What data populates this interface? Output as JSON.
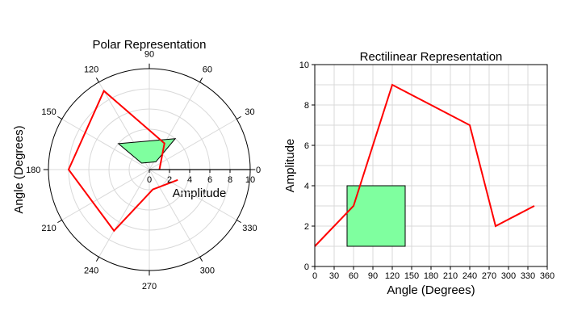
{
  "chart_data": [
    {
      "type": "line",
      "projection": "polar",
      "title": "Polar Representation",
      "ylabel": "Angle (Degrees)",
      "radial_label": "Amplitude",
      "radial_ticks": [
        0,
        2,
        4,
        6,
        8,
        10
      ],
      "radial_end_label": "0",
      "rlim": [
        0,
        10
      ],
      "angle_ticks": [
        "0",
        "30",
        "60",
        "90",
        "120",
        "150",
        "180",
        "210",
        "240",
        "270",
        "300",
        "330"
      ],
      "grid": true,
      "series": [
        {
          "color": "#ff0000",
          "x": [
            0,
            60,
            120,
            180,
            240,
            280,
            340
          ],
          "y": [
            1,
            3,
            9,
            8,
            7,
            2,
            3
          ]
        }
      ],
      "rectangle": {
        "theta": [
          50,
          140
        ],
        "r": [
          1,
          4
        ],
        "fill": "#7fff9f"
      }
    },
    {
      "type": "line",
      "title": "Rectilinear Representation",
      "xlabel": "Angle (Degrees)",
      "ylabel": "Amplitude",
      "xlim": [
        0,
        360
      ],
      "ylim": [
        0,
        10
      ],
      "xticks": [
        "0",
        "30",
        "60",
        "90",
        "120",
        "150",
        "180",
        "210",
        "240",
        "270",
        "300",
        "330",
        "360"
      ],
      "yticks": [
        "0",
        "2",
        "4",
        "6",
        "8",
        "10"
      ],
      "grid": true,
      "series": [
        {
          "color": "#ff0000",
          "x": [
            0,
            60,
            120,
            240,
            280,
            340
          ],
          "y": [
            1,
            3,
            9,
            7,
            2,
            3
          ]
        }
      ],
      "rectangle": {
        "x": [
          50,
          140
        ],
        "y": [
          1,
          4
        ],
        "fill": "#7fff9f"
      }
    }
  ]
}
